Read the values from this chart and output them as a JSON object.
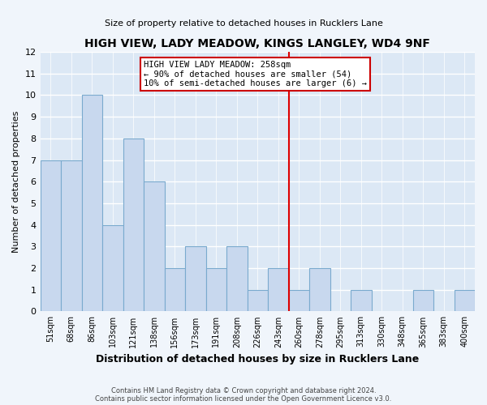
{
  "title": "HIGH VIEW, LADY MEADOW, KINGS LANGLEY, WD4 9NF",
  "subtitle": "Size of property relative to detached houses in Rucklers Lane",
  "xlabel": "Distribution of detached houses by size in Rucklers Lane",
  "ylabel": "Number of detached properties",
  "footer1": "Contains HM Land Registry data © Crown copyright and database right 2024.",
  "footer2": "Contains public sector information licensed under the Open Government Licence v3.0.",
  "bin_labels": [
    "51sqm",
    "68sqm",
    "86sqm",
    "103sqm",
    "121sqm",
    "138sqm",
    "156sqm",
    "173sqm",
    "191sqm",
    "208sqm",
    "226sqm",
    "243sqm",
    "260sqm",
    "278sqm",
    "295sqm",
    "313sqm",
    "330sqm",
    "348sqm",
    "365sqm",
    "383sqm",
    "400sqm"
  ],
  "bar_heights": [
    7,
    7,
    10,
    4,
    8,
    6,
    2,
    3,
    2,
    3,
    1,
    2,
    1,
    2,
    0,
    1,
    0,
    0,
    1,
    0,
    1
  ],
  "bar_color": "#c8d8ee",
  "bar_edge_color": "#7aaace",
  "vline_x": 11.5,
  "vline_color": "#dd0000",
  "ylim_max": 12,
  "annotation_title": "HIGH VIEW LADY MEADOW: 258sqm",
  "annotation_line1": "← 90% of detached houses are smaller (54)",
  "annotation_line2": "10% of semi-detached houses are larger (6) →",
  "box_edge_color": "#cc0000",
  "plot_bg_color": "#dce8f5",
  "fig_bg_color": "#f0f5fb",
  "grid_color": "#ffffff",
  "spine_color": "#b0b8c8"
}
